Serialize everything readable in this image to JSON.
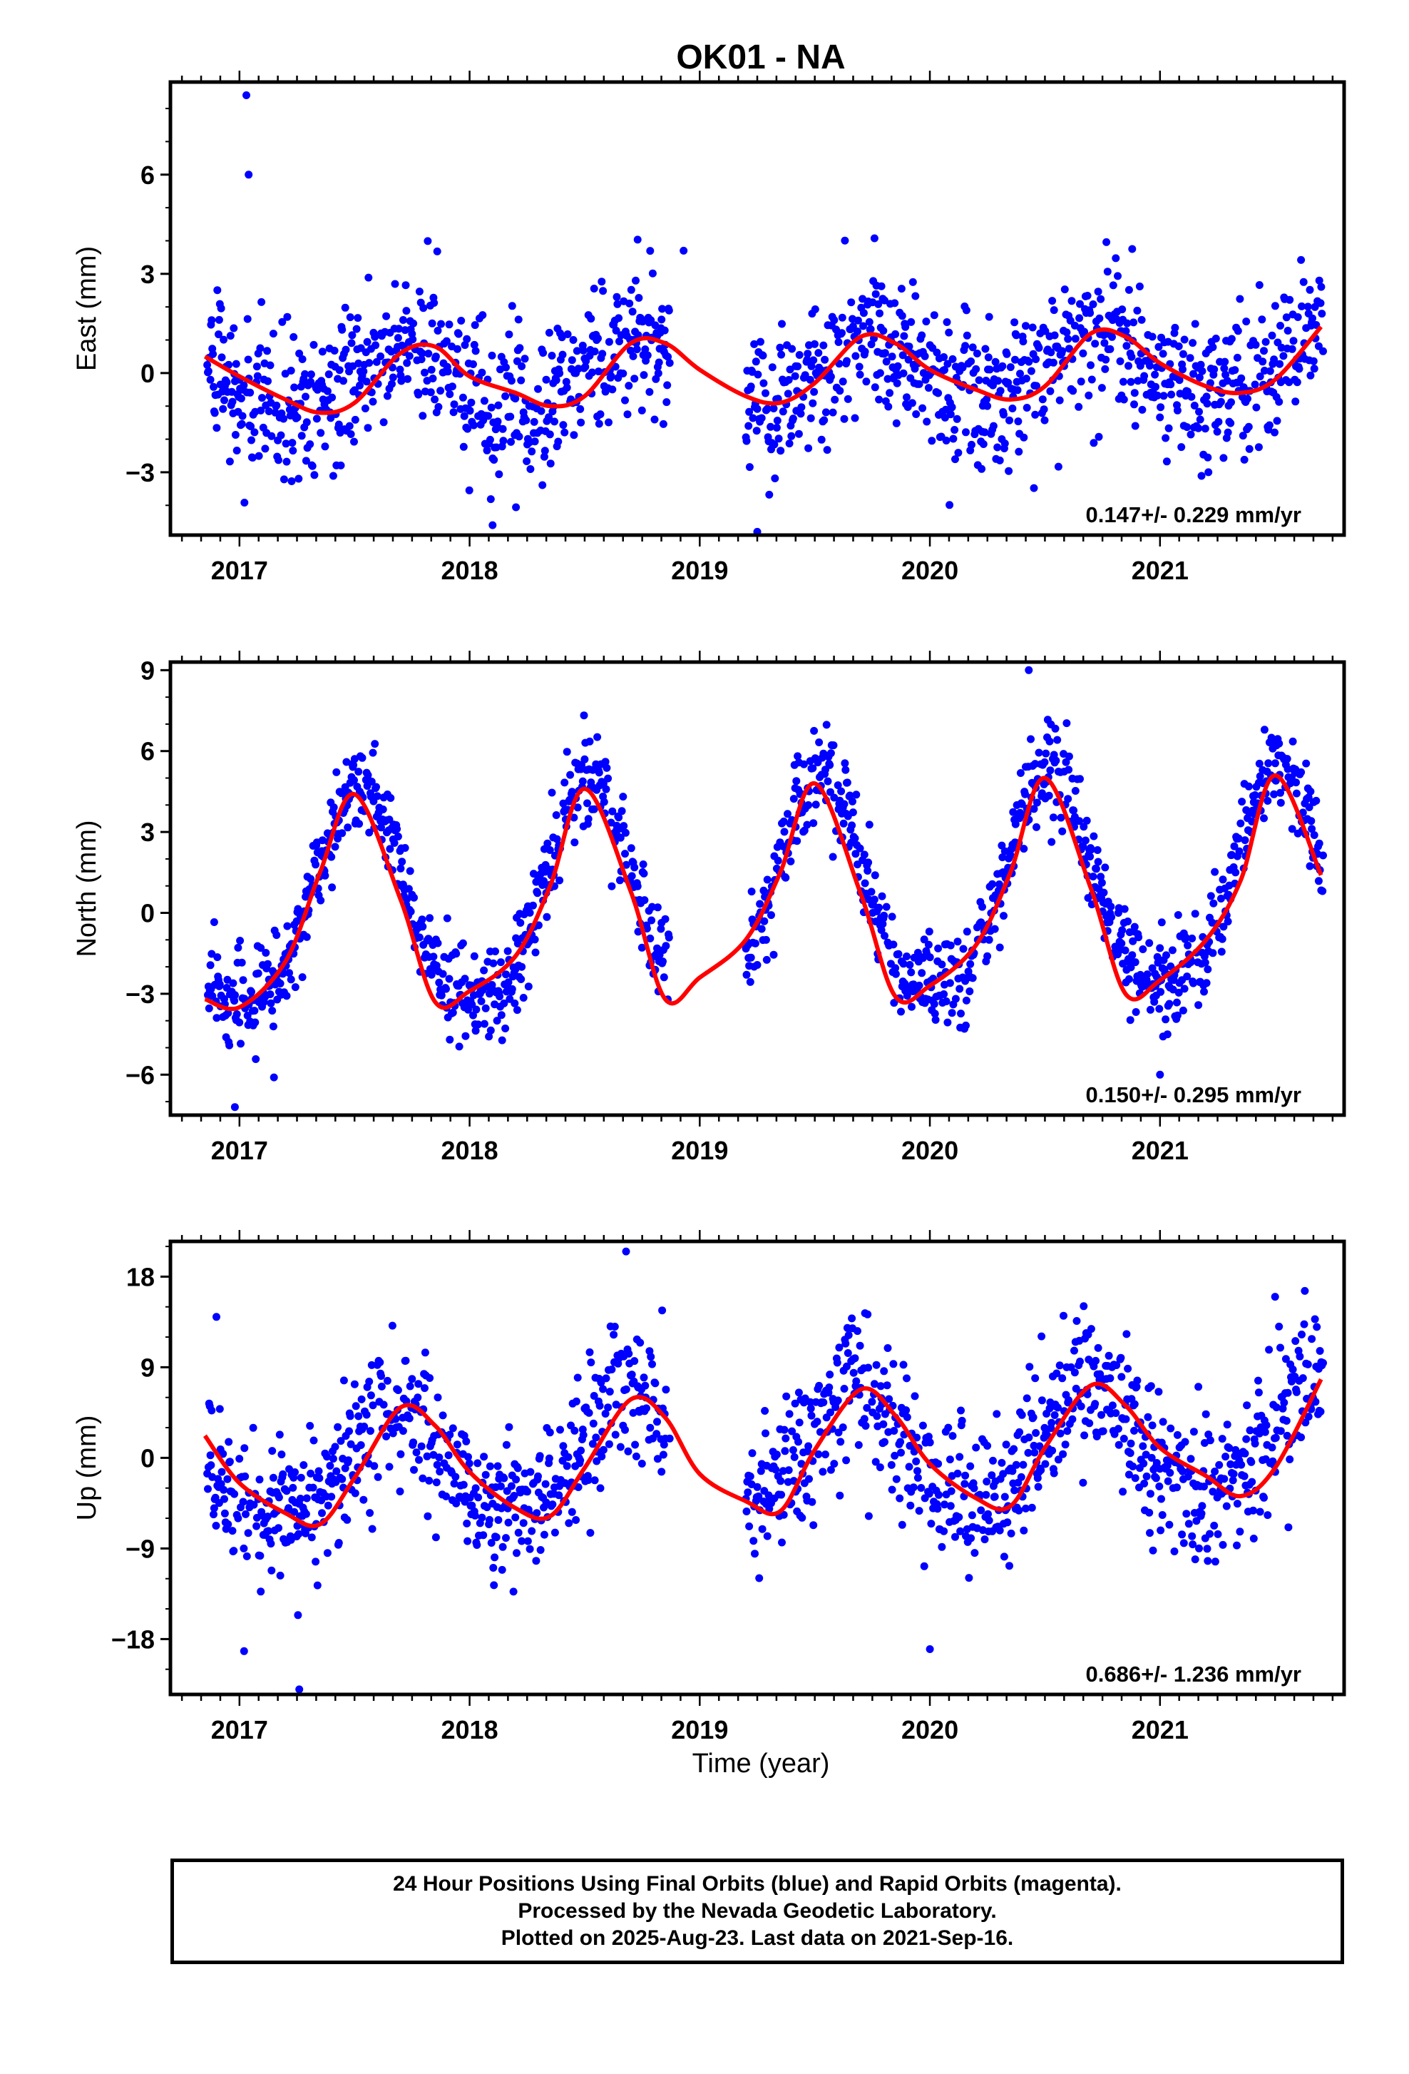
{
  "title": "OK01 - NA",
  "xlabel": "Time (year)",
  "footer": {
    "line1": "24 Hour Positions Using Final Orbits (blue) and Rapid Orbits (magenta).",
    "line2": "Processed by the Nevada Geodetic Laboratory.",
    "line3": "Plotted on 2025-Aug-23. Last data on 2021-Sep-16."
  },
  "colors": {
    "points": "#0000ff",
    "fit": "#ff0000",
    "axes": "#000000"
  },
  "chart_data": [
    {
      "type": "scatter",
      "component": "east",
      "ylabel": "East (mm)",
      "xlim": [
        2016.7,
        2021.8
      ],
      "ylim": [
        -4.9,
        8.8
      ],
      "yticks": [
        -3,
        0,
        3,
        6
      ],
      "ytick_labels": [
        "−3",
        "0",
        "3",
        "6"
      ],
      "xticks": [
        2017,
        2018,
        2019,
        2020,
        2021
      ],
      "xtick_labels": [
        "2017",
        "2018",
        "2019",
        "2020",
        "2021"
      ],
      "rate_label": "0.147+/- 0.229 mm/yr",
      "series": [
        {
          "name": "",
          "kind": "points",
          "gaps": [
            [
              2018.87,
              2019.2
            ]
          ],
          "model": {
            "offset": 0.0,
            "trend": 0.147,
            "annual_amp": 1.0,
            "annual_phase_peak": 0.72,
            "semi_amp": 0.15,
            "noise": 1.1
          },
          "outliers": [
            [
              2017.03,
              8.4
            ],
            [
              2017.04,
              6.0
            ],
            [
              2018.93,
              3.7
            ],
            [
              2019.25,
              -4.8
            ],
            [
              2018.1,
              -4.6
            ]
          ]
        },
        {
          "name": "",
          "kind": "fit",
          "x": [
            2016.85,
            2017.0,
            2017.2,
            2017.35,
            2017.5,
            2017.7,
            2017.85,
            2018.0,
            2018.2,
            2018.35,
            2018.5,
            2018.7,
            2018.85,
            2019.0,
            2019.2,
            2019.35,
            2019.5,
            2019.7,
            2019.85,
            2020.0,
            2020.2,
            2020.35,
            2020.5,
            2020.7,
            2020.85,
            2021.0,
            2021.2,
            2021.35,
            2021.5,
            2021.7
          ],
          "y": [
            0.5,
            -0.1,
            -0.8,
            -1.2,
            -0.9,
            0.6,
            0.8,
            -0.1,
            -0.6,
            -1.0,
            -0.7,
            0.9,
            0.9,
            0.1,
            -0.7,
            -0.9,
            -0.3,
            1.1,
            0.9,
            0.1,
            -0.5,
            -0.8,
            -0.4,
            1.2,
            1.1,
            0.3,
            -0.4,
            -0.6,
            -0.2,
            1.4
          ]
        }
      ]
    },
    {
      "type": "scatter",
      "component": "north",
      "ylabel": "North (mm)",
      "xlim": [
        2016.7,
        2021.8
      ],
      "ylim": [
        -7.5,
        9.3
      ],
      "yticks": [
        -6,
        -3,
        0,
        3,
        6,
        9
      ],
      "ytick_labels": [
        "−6",
        "−3",
        "0",
        "3",
        "6",
        "9"
      ],
      "xticks": [
        2017,
        2018,
        2019,
        2020,
        2021
      ],
      "xtick_labels": [
        "2017",
        "2018",
        "2019",
        "2020",
        "2021"
      ],
      "rate_label": "0.150+/- 0.295 mm/yr",
      "series": [
        {
          "name": "",
          "kind": "points",
          "gaps": [
            [
              2018.87,
              2019.2
            ]
          ],
          "model": {
            "offset": 0.5,
            "trend": 0.15,
            "annual_amp": 4.0,
            "annual_phase_peak": 0.52,
            "semi_amp": 0.6,
            "noise": 0.9
          },
          "outliers": [
            [
              2016.98,
              -7.2
            ],
            [
              2017.15,
              -6.1
            ],
            [
              2020.43,
              9.0
            ],
            [
              2020.15,
              -4.3
            ],
            [
              2021.0,
              -6.0
            ]
          ]
        },
        {
          "name": "",
          "kind": "fit",
          "x": [
            2016.85,
            2017.0,
            2017.2,
            2017.35,
            2017.5,
            2017.7,
            2017.85,
            2018.0,
            2018.2,
            2018.35,
            2018.5,
            2018.7,
            2018.85,
            2019.0,
            2019.2,
            2019.35,
            2019.5,
            2019.7,
            2019.85,
            2020.0,
            2020.2,
            2020.35,
            2020.5,
            2020.7,
            2020.85,
            2021.0,
            2021.2,
            2021.35,
            2021.5,
            2021.7
          ],
          "y": [
            -3.2,
            -3.5,
            -1.8,
            1.5,
            4.4,
            0.5,
            -3.3,
            -2.9,
            -1.6,
            1.0,
            4.6,
            0.8,
            -3.2,
            -2.4,
            -1.0,
            1.5,
            4.8,
            0.7,
            -3.1,
            -2.7,
            -1.2,
            1.5,
            5.0,
            0.9,
            -3.0,
            -2.5,
            -1.0,
            1.2,
            5.1,
            1.4
          ]
        }
      ]
    },
    {
      "type": "scatter",
      "component": "up",
      "ylabel": "Up (mm)",
      "xlim": [
        2016.7,
        2021.8
      ],
      "ylim": [
        -23.5,
        21.5
      ],
      "yticks": [
        -18,
        -9,
        0,
        9,
        18
      ],
      "ytick_labels": [
        "−18",
        "−9",
        "0",
        "9",
        "18"
      ],
      "xticks": [
        2017,
        2018,
        2019,
        2020,
        2021
      ],
      "xtick_labels": [
        "2017",
        "2018",
        "2019",
        "2020",
        "2021"
      ],
      "rate_label": "0.686+/- 1.236 mm/yr",
      "series": [
        {
          "name": "",
          "kind": "points",
          "gaps": [
            [
              2018.87,
              2019.2
            ]
          ],
          "model": {
            "offset": 0.5,
            "trend": 0.686,
            "annual_amp": 5.5,
            "annual_phase_peak": 0.68,
            "semi_amp": 0.8,
            "noise": 3.6
          },
          "outliers": [
            [
              2017.26,
              -23.0
            ],
            [
              2017.02,
              -19.2
            ],
            [
              2016.9,
              14.0
            ],
            [
              2018.68,
              20.5
            ],
            [
              2020.0,
              -19.0
            ],
            [
              2021.5,
              16.0
            ]
          ]
        },
        {
          "name": "",
          "kind": "fit",
          "x": [
            2016.85,
            2017.0,
            2017.2,
            2017.35,
            2017.5,
            2017.7,
            2017.85,
            2018.0,
            2018.2,
            2018.35,
            2018.5,
            2018.7,
            2018.85,
            2019.0,
            2019.2,
            2019.35,
            2019.5,
            2019.7,
            2019.85,
            2020.0,
            2020.2,
            2020.35,
            2020.5,
            2020.7,
            2020.85,
            2021.0,
            2021.2,
            2021.35,
            2021.5,
            2021.7
          ],
          "y": [
            2.2,
            -2.5,
            -5.5,
            -6.6,
            -2.0,
            5.0,
            3.2,
            -1.4,
            -5.0,
            -5.8,
            -1.0,
            5.8,
            4.0,
            -1.6,
            -4.3,
            -5.3,
            0.8,
            6.8,
            4.2,
            -0.6,
            -4.0,
            -4.8,
            1.0,
            7.2,
            5.2,
            1.0,
            -1.8,
            -3.8,
            -1.0,
            7.8
          ]
        }
      ]
    }
  ]
}
